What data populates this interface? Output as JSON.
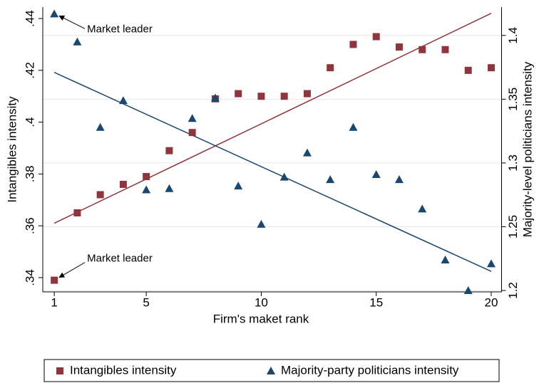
{
  "chart_data": {
    "type": "scatter",
    "xlabel": "Firm's maket rank",
    "ylabel": "Intangibles intensity",
    "y2label": "Majority-level politicians intensity",
    "x": [
      1,
      2,
      3,
      4,
      5,
      6,
      7,
      8,
      9,
      10,
      11,
      12,
      13,
      14,
      15,
      16,
      17,
      18,
      19,
      20
    ],
    "xlim": [
      0.5,
      20.45
    ],
    "xticks": [
      1,
      5,
      10,
      15,
      20
    ],
    "ylim": [
      0.3345,
      0.4444
    ],
    "yticks": [
      {
        "value": 0.34,
        "label": ".34"
      },
      {
        "value": 0.36,
        "label": ".36"
      },
      {
        "value": 0.38,
        "label": ".38"
      },
      {
        "value": 0.4,
        "label": ".4"
      },
      {
        "value": 0.42,
        "label": ".42"
      },
      {
        "value": 0.44,
        "label": ".44"
      }
    ],
    "y2lim": [
      1.1989,
      1.4222
    ],
    "y2ticks": [
      1.2,
      1.25,
      1.3,
      1.35,
      1.4
    ],
    "grid": true,
    "series": [
      {
        "name": "Intangibles intensity",
        "color": "#90353b",
        "marker": "square",
        "axis": "y",
        "values": [
          0.339,
          0.365,
          0.372,
          0.376,
          0.379,
          0.389,
          0.396,
          0.409,
          0.411,
          0.41,
          0.41,
          0.411,
          0.421,
          0.43,
          0.433,
          0.429,
          0.428,
          0.428,
          0.42,
          0.421
        ]
      },
      {
        "name": "Majority-party politicians intensity",
        "color": "#1a476f",
        "marker": "triangle",
        "axis": "y2",
        "values": [
          1.417,
          1.395,
          1.328,
          1.349,
          1.279,
          1.28,
          1.335,
          1.351,
          1.282,
          1.252,
          1.289,
          1.308,
          1.287,
          1.328,
          1.291,
          1.287,
          1.264,
          1.224,
          1.2,
          1.221
        ]
      }
    ],
    "fit_lines": [
      {
        "color": "#90353b",
        "axis": "y",
        "x": [
          1,
          20
        ],
        "values": [
          0.361,
          0.442
        ]
      },
      {
        "color": "#1a476f",
        "axis": "y2",
        "x": [
          1,
          20
        ],
        "values": [
          1.371,
          1.215
        ]
      }
    ],
    "annotations": [
      {
        "text": "Market leader",
        "series": 1,
        "index": 0
      },
      {
        "text": "Market leader",
        "series": 0,
        "index": 0
      }
    ]
  }
}
